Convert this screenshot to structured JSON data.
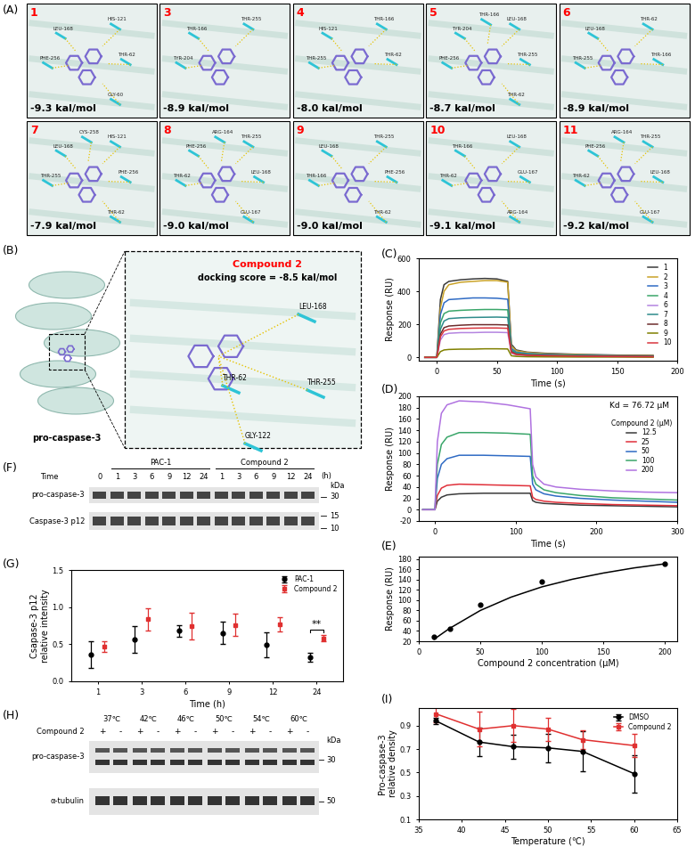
{
  "panel_A": {
    "label": "(A)",
    "poses": [
      {
        "compound": "1",
        "score": "-9.3 kal/mol",
        "residues": [
          "LEU-168",
          "HIS-121",
          "PHE-256",
          "THR-62",
          "GLY-60"
        ]
      },
      {
        "compound": "3",
        "score": "-8.9 kal/mol",
        "residues": [
          "THR-166",
          "THR-255",
          "TYR-204"
        ]
      },
      {
        "compound": "4",
        "score": "-8.0 kal/mol",
        "residues": [
          "HIS-121",
          "THR-166",
          "THR-255",
          "THR-62"
        ]
      },
      {
        "compound": "5",
        "score": "-8.7 kal/mol",
        "residues": [
          "TYR-204",
          "LEU-168",
          "PHE-256",
          "THR-255",
          "THR-62",
          "THR-166"
        ]
      },
      {
        "compound": "6",
        "score": "-8.9 kal/mol",
        "residues": [
          "LEU-168",
          "THR-62",
          "THR-255",
          "THR-166"
        ]
      },
      {
        "compound": "7",
        "score": "-7.9 kal/mol",
        "residues": [
          "LEU-168",
          "HIS-121",
          "THR-255",
          "PHE-256",
          "THR-62",
          "CYS-258"
        ]
      },
      {
        "compound": "8",
        "score": "-9.0 kal/mol",
        "residues": [
          "PHE-256",
          "THR-255",
          "THR-62",
          "LEU-168",
          "GLU-167",
          "ARG-164"
        ]
      },
      {
        "compound": "9",
        "score": "-9.0 kal/mol",
        "residues": [
          "LEU-168",
          "THR-255",
          "THR-166",
          "PHE-256",
          "THR-62"
        ]
      },
      {
        "compound": "10",
        "score": "-9.1 kal/mol",
        "residues": [
          "THR-166",
          "LEU-168",
          "THR-62",
          "GLU-167",
          "ARG-164"
        ]
      },
      {
        "compound": "11",
        "score": "-9.2 kal/mol",
        "residues": [
          "PHE-256",
          "THR-255",
          "THR-62",
          "LEU-168",
          "GLU-167",
          "ARG-164"
        ]
      }
    ]
  },
  "panel_B": {
    "label": "(B)",
    "protein": "pro-caspase-3",
    "compound": "Compound 2",
    "score": "docking score = -8.5 kal/mol",
    "residues": [
      "LEU-168",
      "THR-62",
      "THR-255",
      "GLY-122"
    ]
  },
  "panel_F": {
    "label": "(F)",
    "time_label": "Time",
    "control_time": "0",
    "unit": "(h)",
    "groups": [
      {
        "name": "PAC-1",
        "times": [
          "1",
          "3",
          "6",
          "9",
          "12",
          "24"
        ]
      },
      {
        "name": "Compound 2",
        "times": [
          "1",
          "3",
          "6",
          "9",
          "12",
          "24"
        ]
      }
    ],
    "rows": [
      "pro-caspase-3",
      "Caspase-3 p12"
    ],
    "marker_unit": "kDa",
    "markers": [
      "30",
      "15",
      "10"
    ]
  },
  "panel_H": {
    "label": "(H)",
    "temperatures": [
      "37℃",
      "42℃",
      "46℃",
      "50℃",
      "54℃",
      "60℃"
    ],
    "treatment": "Compound 2",
    "signs": [
      "+",
      "-"
    ],
    "rows": [
      "pro-caspase-3",
      "α-tubulin"
    ],
    "marker_unit": "kDa",
    "markers": [
      "30",
      "50"
    ]
  },
  "chart_data": [
    {
      "panel_label": "(C)",
      "type": "line",
      "xlabel": "Time (s)",
      "ylabel": "Response (RU)",
      "x": [
        -10,
        0,
        3,
        6,
        10,
        20,
        30,
        40,
        50,
        59,
        62,
        66,
        75,
        90,
        120,
        150,
        180
      ],
      "series": [
        {
          "name": "1",
          "color": "#3a3a3a",
          "values": [
            0,
            0,
            350,
            440,
            460,
            470,
            475,
            478,
            475,
            460,
            80,
            45,
            32,
            25,
            18,
            14,
            12
          ]
        },
        {
          "name": "2",
          "color": "#c9a227",
          "values": [
            0,
            0,
            300,
            400,
            440,
            455,
            460,
            465,
            465,
            455,
            70,
            40,
            30,
            22,
            16,
            12,
            10
          ]
        },
        {
          "name": "3",
          "color": "#2f6bc4",
          "values": [
            0,
            0,
            260,
            330,
            350,
            355,
            360,
            360,
            358,
            352,
            55,
            32,
            24,
            18,
            13,
            10,
            8
          ]
        },
        {
          "name": "4",
          "color": "#3aa66a",
          "values": [
            0,
            0,
            210,
            265,
            280,
            285,
            288,
            290,
            290,
            288,
            45,
            28,
            20,
            15,
            11,
            8,
            7
          ]
        },
        {
          "name": "6",
          "color": "#b484e0",
          "values": [
            0,
            0,
            105,
            138,
            146,
            150,
            150,
            152,
            152,
            150,
            26,
            15,
            11,
            8,
            6,
            5,
            4
          ]
        },
        {
          "name": "7",
          "color": "#2e8b8b",
          "values": [
            0,
            0,
            170,
            220,
            235,
            240,
            242,
            243,
            244,
            242,
            40,
            24,
            17,
            13,
            9,
            7,
            6
          ]
        },
        {
          "name": "8",
          "color": "#6e2c2c",
          "values": [
            0,
            0,
            140,
            180,
            190,
            195,
            198,
            198,
            198,
            196,
            34,
            20,
            14,
            11,
            8,
            6,
            5
          ]
        },
        {
          "name": "9",
          "color": "#808000",
          "values": [
            0,
            0,
            35,
            45,
            48,
            50,
            50,
            52,
            52,
            51,
            10,
            6,
            4,
            3,
            2,
            2,
            1
          ]
        },
        {
          "name": "10",
          "color": "#d9363e",
          "values": [
            0,
            0,
            125,
            160,
            170,
            175,
            177,
            178,
            178,
            176,
            30,
            18,
            13,
            10,
            7,
            5,
            4
          ]
        }
      ],
      "xlim": [
        -15,
        200
      ],
      "xticks": [
        0,
        50,
        100,
        150,
        200
      ],
      "ylim": [
        -20,
        600
      ],
      "yticks": [
        0,
        200,
        400,
        600
      ],
      "legend": "upper right"
    },
    {
      "panel_label": "(D)",
      "type": "line",
      "xlabel": "Time (s)",
      "ylabel": "Response (RU)",
      "annotation": "Kd = 76.72 μM",
      "legend_title": "Compound 2 (μM)",
      "x": [
        -15,
        0,
        3,
        8,
        15,
        30,
        60,
        90,
        118,
        121,
        125,
        135,
        150,
        180,
        220,
        260,
        300
      ],
      "series": [
        {
          "name": "12.5",
          "color": "#3a3a3a",
          "values": [
            0,
            0,
            15,
            22,
            26,
            28,
            29,
            29,
            29,
            16,
            13,
            11,
            10,
            8,
            7,
            6,
            5
          ]
        },
        {
          "name": "25",
          "color": "#e0303a",
          "values": [
            0,
            0,
            25,
            38,
            43,
            45,
            44,
            43,
            42,
            22,
            18,
            15,
            13,
            11,
            9,
            8,
            7
          ]
        },
        {
          "name": "50",
          "color": "#2f6bc4",
          "values": [
            0,
            0,
            55,
            80,
            90,
            96,
            96,
            95,
            94,
            45,
            35,
            28,
            24,
            20,
            17,
            15,
            13
          ]
        },
        {
          "name": "100",
          "color": "#3aa66a",
          "values": [
            0,
            0,
            80,
            115,
            128,
            136,
            136,
            135,
            133,
            60,
            45,
            35,
            30,
            25,
            21,
            19,
            17
          ]
        },
        {
          "name": "200",
          "color": "#b072e0",
          "values": [
            0,
            0,
            120,
            170,
            185,
            192,
            190,
            185,
            178,
            80,
            58,
            45,
            40,
            36,
            33,
            31,
            30
          ]
        }
      ],
      "xlim": [
        -20,
        300
      ],
      "xticks": [
        0,
        100,
        200,
        300
      ],
      "ylim": [
        -20,
        200
      ],
      "yticks": [
        -20,
        0,
        20,
        40,
        60,
        80,
        100,
        120,
        140,
        160,
        180,
        200
      ],
      "legend": "upper right"
    },
    {
      "panel_label": "(E)",
      "type": "scatter",
      "xlabel": "Compound 2 concentration (μM)",
      "ylabel": "Response (RU)",
      "series": [
        {
          "type": "scatter",
          "marker": "circle",
          "color": "#000000",
          "x": [
            12.5,
            25,
            50,
            100,
            200
          ],
          "values": [
            28,
            44,
            92,
            136,
            171
          ]
        },
        {
          "type": "line",
          "color": "#000000",
          "x": [
            12.5,
            25,
            50,
            75,
            100,
            125,
            150,
            175,
            200
          ],
          "values": [
            24,
            45,
            80,
            106,
            126,
            141,
            153,
            163,
            171
          ]
        }
      ],
      "xlim": [
        0,
        210
      ],
      "xticks": [
        0,
        50,
        100,
        150,
        200
      ],
      "ylim": [
        20,
        185
      ],
      "yticks": [
        20,
        40,
        60,
        80,
        100,
        120,
        140,
        160,
        180
      ]
    },
    {
      "panel_label": "(G)",
      "type": "scatter",
      "xlabel": "Time (h)",
      "ylabel": "Csapase-3 p12\nrelative intensity",
      "categories": [
        "1",
        "3",
        "6",
        "9",
        "12",
        "24"
      ],
      "series": [
        {
          "name": "PAC-1",
          "marker": "circle",
          "color": "#000000",
          "values": [
            0.36,
            0.57,
            0.68,
            0.65,
            0.49,
            0.33
          ],
          "errors": [
            0.18,
            0.18,
            0.08,
            0.15,
            0.17,
            0.06
          ]
        },
        {
          "name": "Compound 2",
          "marker": "square",
          "color": "#e03030",
          "values": [
            0.47,
            0.84,
            0.75,
            0.76,
            0.77,
            0.58
          ],
          "errors": [
            0.07,
            0.15,
            0.18,
            0.15,
            0.1,
            0.04
          ]
        }
      ],
      "annotation": {
        "text": "**",
        "category": "24"
      },
      "ylim": [
        0,
        1.5
      ],
      "yticks": [
        {
          "value": 0,
          "label": "0.0"
        },
        {
          "value": 0.5,
          "label": "0.5"
        },
        {
          "value": 1.0,
          "label": "1.0"
        },
        {
          "value": 1.5,
          "label": "1.5"
        }
      ],
      "legend": "upper right"
    },
    {
      "panel_label": "(I)",
      "type": "line",
      "xlabel": "Temperature (℃)",
      "ylabel": "Pro-caspase-3\nrelative density",
      "x": [
        37,
        42,
        46,
        50,
        54,
        60
      ],
      "series": [
        {
          "name": "DMSO",
          "marker": "circle",
          "line_style": "solid",
          "color": "#000000",
          "values": [
            0.94,
            0.76,
            0.72,
            0.71,
            0.68,
            0.49
          ],
          "errors": [
            0.03,
            0.12,
            0.1,
            0.12,
            0.17,
            0.16
          ]
        },
        {
          "name": "Compound 2",
          "marker": "square",
          "line_style": "solid",
          "color": "#e03030",
          "values": [
            1.0,
            0.87,
            0.9,
            0.87,
            0.78,
            0.73
          ],
          "errors": [
            0.07,
            0.15,
            0.14,
            0.1,
            0.08,
            0.1
          ]
        }
      ],
      "xlim": [
        35,
        65
      ],
      "xticks": [
        35,
        40,
        45,
        50,
        55,
        60,
        65
      ],
      "ylim": [
        0.1,
        1.05
      ],
      "yticks": [
        0.1,
        0.3,
        0.5,
        0.7,
        0.9
      ],
      "legend": "upper right"
    }
  ]
}
